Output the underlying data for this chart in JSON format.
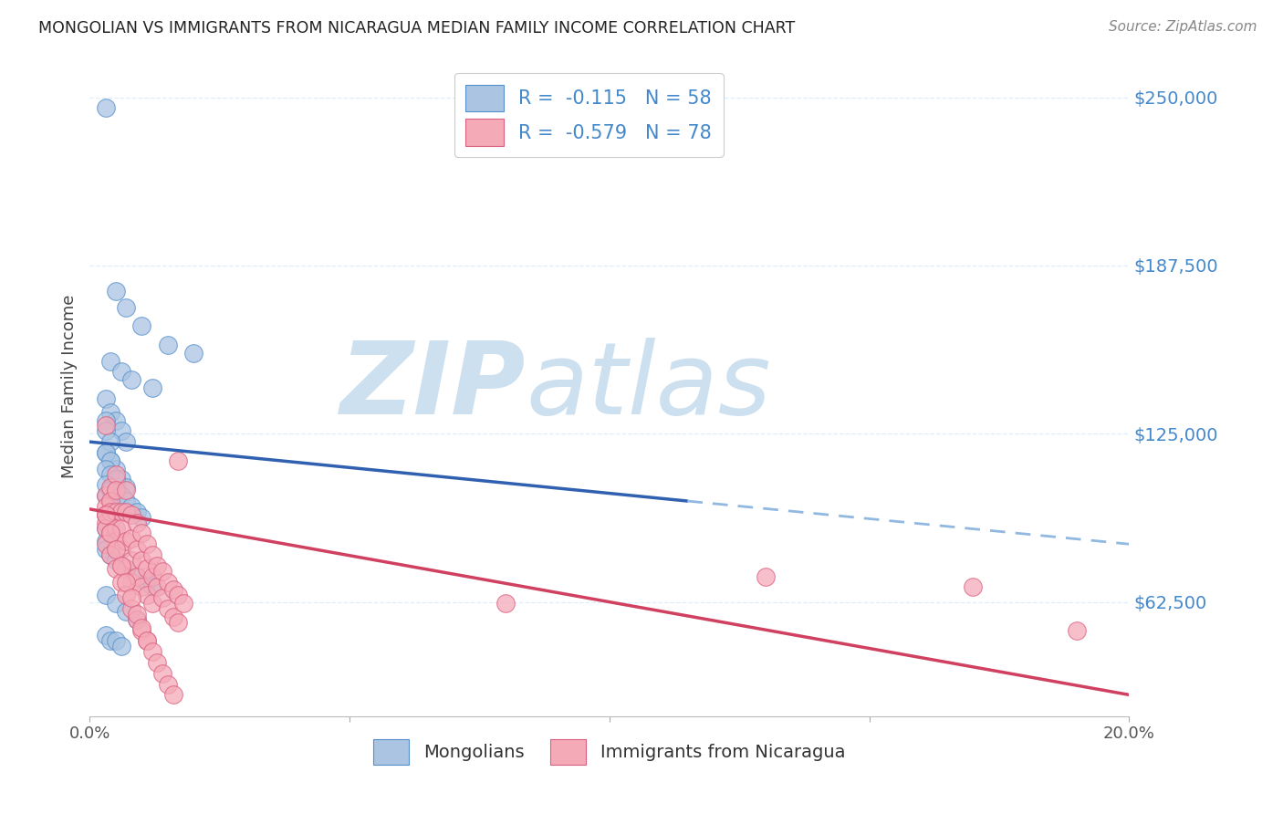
{
  "title": "MONGOLIAN VS IMMIGRANTS FROM NICARAGUA MEDIAN FAMILY INCOME CORRELATION CHART",
  "source": "Source: ZipAtlas.com",
  "ylabel": "Median Family Income",
  "yticks": [
    62500,
    125000,
    187500,
    250000
  ],
  "ytick_labels": [
    "$62,500",
    "$125,000",
    "$187,500",
    "$250,000"
  ],
  "xlim": [
    0.0,
    0.2
  ],
  "ylim": [
    20000,
    265000
  ],
  "legend_blue_label": "R =  -0.115   N = 58",
  "legend_pink_label": "R =  -0.579   N = 78",
  "legend_bottom_blue": "Mongolians",
  "legend_bottom_pink": "Immigrants from Nicaragua",
  "blue_color": "#aac4e2",
  "pink_color": "#f5aab8",
  "blue_edge_color": "#5590cc",
  "pink_edge_color": "#d96080",
  "blue_line_color": "#3060b0",
  "pink_line_color": "#d04060",
  "dashed_line_color": "#90b8e0",
  "label_color": "#4488cc",
  "watermark_zip": "ZIP",
  "watermark_atlas": "atlas",
  "watermark_color": "#cce0f0",
  "background_color": "#ffffff",
  "grid_color": "#ddeeff",
  "blue_scatter_x": [
    0.003,
    0.005,
    0.007,
    0.01,
    0.015,
    0.02,
    0.004,
    0.006,
    0.008,
    0.012,
    0.003,
    0.004,
    0.005,
    0.006,
    0.007,
    0.003,
    0.004,
    0.005,
    0.006,
    0.007,
    0.003,
    0.004,
    0.005,
    0.003,
    0.004,
    0.003,
    0.003,
    0.004,
    0.003,
    0.004,
    0.003,
    0.004,
    0.005,
    0.003,
    0.004,
    0.006,
    0.007,
    0.008,
    0.009,
    0.01,
    0.003,
    0.004,
    0.003,
    0.003,
    0.004,
    0.005,
    0.007,
    0.009,
    0.011,
    0.012,
    0.003,
    0.005,
    0.007,
    0.009,
    0.003,
    0.004,
    0.005,
    0.006
  ],
  "blue_scatter_y": [
    246000,
    178000,
    172000,
    165000,
    158000,
    155000,
    152000,
    148000,
    145000,
    142000,
    138000,
    133000,
    130000,
    126000,
    122000,
    118000,
    115000,
    112000,
    108000,
    105000,
    102000,
    100000,
    97000,
    95000,
    92000,
    130000,
    126000,
    122000,
    118000,
    115000,
    112000,
    110000,
    108000,
    106000,
    104000,
    102000,
    100000,
    98000,
    96000,
    94000,
    90000,
    88000,
    85000,
    82000,
    80000,
    78000,
    75000,
    72000,
    70000,
    68000,
    65000,
    62000,
    59000,
    56000,
    50000,
    48000,
    48000,
    46000
  ],
  "pink_scatter_x": [
    0.003,
    0.003,
    0.003,
    0.003,
    0.003,
    0.003,
    0.004,
    0.004,
    0.004,
    0.004,
    0.005,
    0.005,
    0.005,
    0.005,
    0.005,
    0.006,
    0.006,
    0.006,
    0.006,
    0.007,
    0.007,
    0.007,
    0.007,
    0.008,
    0.008,
    0.008,
    0.008,
    0.009,
    0.009,
    0.009,
    0.01,
    0.01,
    0.01,
    0.011,
    0.011,
    0.011,
    0.012,
    0.012,
    0.012,
    0.013,
    0.013,
    0.014,
    0.014,
    0.015,
    0.015,
    0.016,
    0.016,
    0.017,
    0.017,
    0.018,
    0.003,
    0.004,
    0.005,
    0.006,
    0.007,
    0.008,
    0.009,
    0.01,
    0.011,
    0.003,
    0.004,
    0.005,
    0.006,
    0.007,
    0.008,
    0.009,
    0.01,
    0.011,
    0.012,
    0.013,
    0.014,
    0.015,
    0.016,
    0.017,
    0.19,
    0.17,
    0.13,
    0.08
  ],
  "pink_scatter_y": [
    102000,
    98000,
    95000,
    92000,
    128000,
    90000,
    105000,
    100000,
    96000,
    88000,
    110000,
    104000,
    96000,
    90000,
    85000,
    96000,
    90000,
    82000,
    76000,
    104000,
    96000,
    85000,
    75000,
    95000,
    86000,
    78000,
    70000,
    92000,
    82000,
    72000,
    88000,
    78000,
    68000,
    84000,
    75000,
    65000,
    80000,
    72000,
    62000,
    76000,
    68000,
    74000,
    64000,
    70000,
    60000,
    67000,
    57000,
    65000,
    55000,
    62000,
    84000,
    80000,
    75000,
    70000,
    65000,
    60000,
    56000,
    52000,
    48000,
    95000,
    88000,
    82000,
    76000,
    70000,
    64000,
    58000,
    53000,
    48000,
    44000,
    40000,
    36000,
    32000,
    28000,
    115000,
    52000,
    68000,
    72000,
    62000
  ],
  "blue_trend_x": [
    0.0,
    0.115
  ],
  "blue_trend_y": [
    122000,
    100000
  ],
  "pink_trend_x": [
    0.0,
    0.2
  ],
  "pink_trend_y": [
    97000,
    28000
  ],
  "dashed_trend_x": [
    0.115,
    0.2
  ],
  "dashed_trend_y": [
    100000,
    84000
  ]
}
